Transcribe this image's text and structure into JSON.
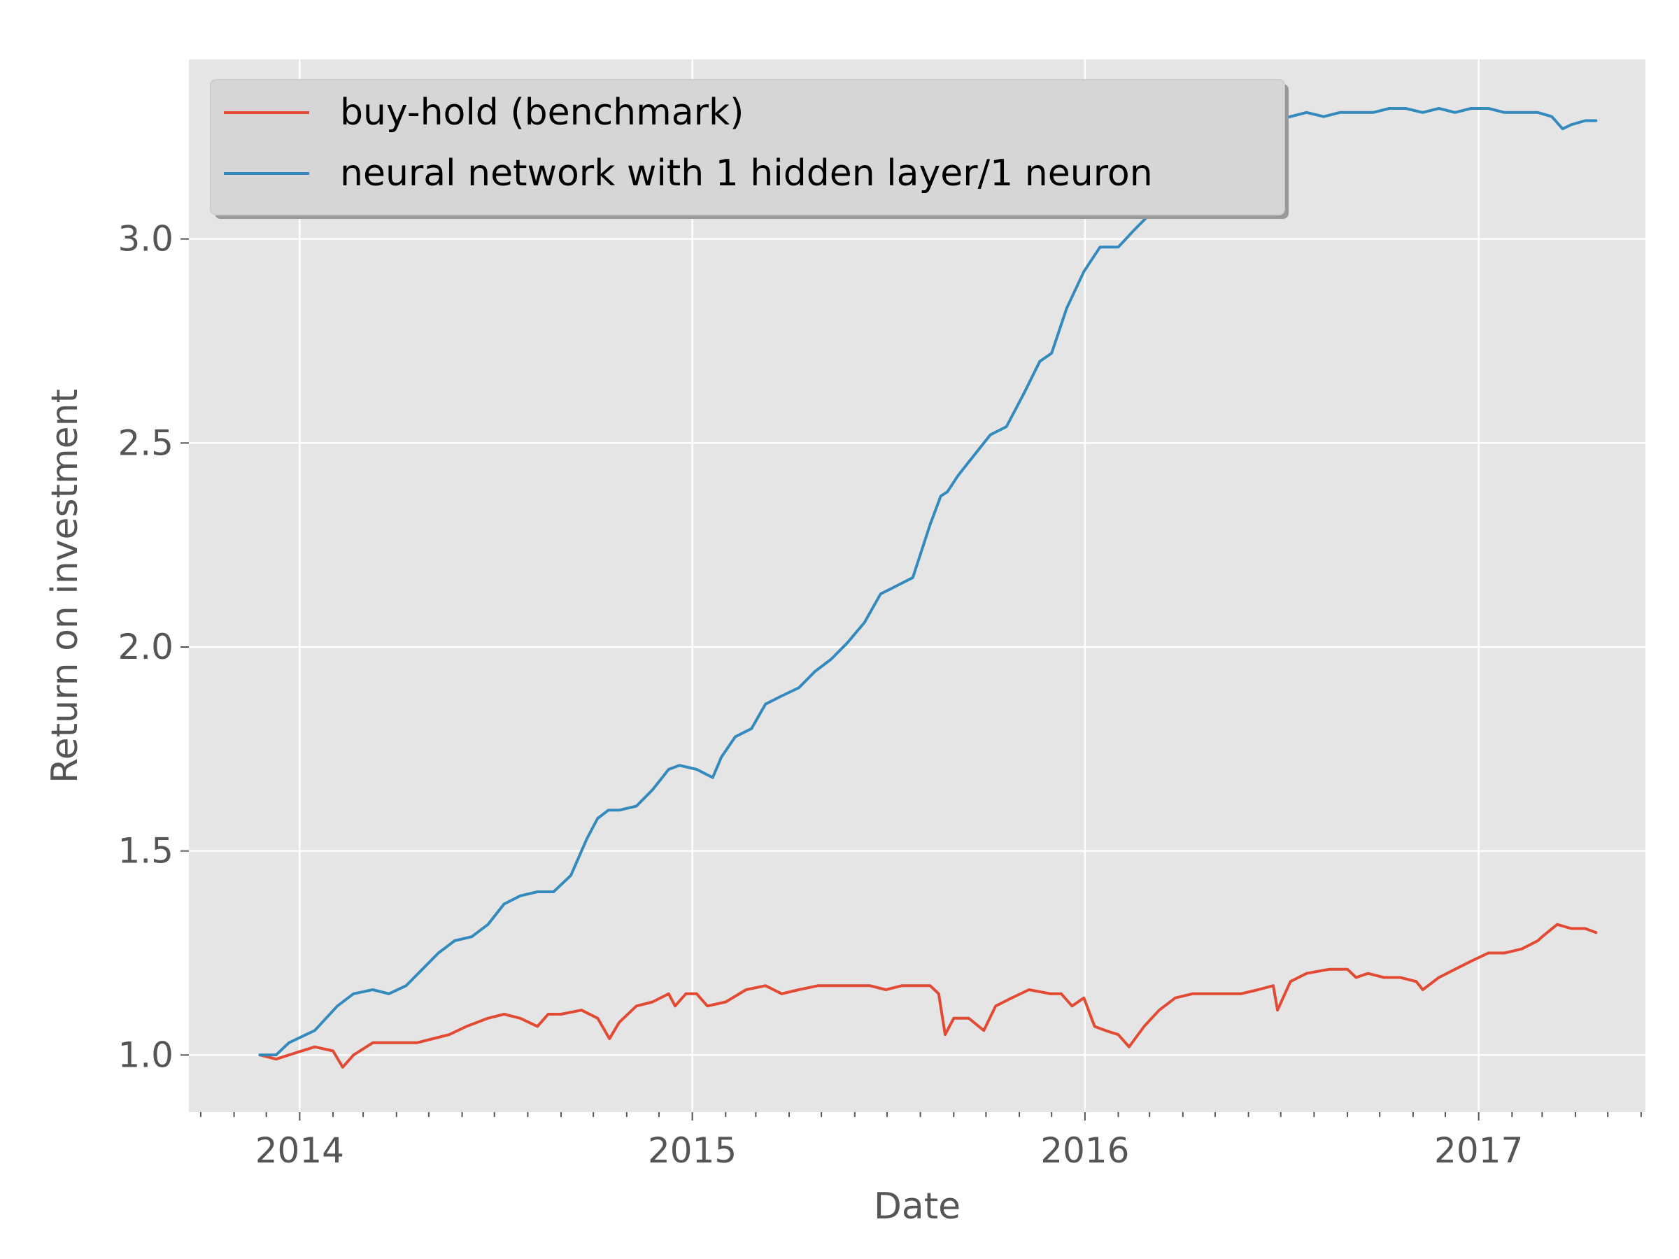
{
  "chart_data": {
    "type": "line",
    "xlabel": "Date",
    "ylabel": "Return on investment",
    "x_axis_type": "date",
    "xlim": [
      "2013-09-20",
      "2017-06-05"
    ],
    "ylim": [
      0.86,
      3.44
    ],
    "x_ticks": [
      {
        "date": "2014-01-01",
        "label": "2014"
      },
      {
        "date": "2015-01-01",
        "label": "2015"
      },
      {
        "date": "2016-01-01",
        "label": "2016"
      },
      {
        "date": "2017-01-01",
        "label": "2017"
      }
    ],
    "minor_x_ticks": "monthly",
    "y_ticks": [
      {
        "value": 1.0,
        "label": "1.0"
      },
      {
        "value": 1.5,
        "label": "1.5"
      },
      {
        "value": 2.0,
        "label": "2.0"
      },
      {
        "value": 2.5,
        "label": "2.5"
      },
      {
        "value": 3.0,
        "label": "3.0"
      }
    ],
    "grid": true,
    "legend_position": "upper-left",
    "series": [
      {
        "name": "buy-hold (benchmark)",
        "color": "#E24A33",
        "x": [
          "2013-11-25",
          "2013-12-10",
          "2013-12-22",
          "2014-01-15",
          "2014-02-01",
          "2014-02-10",
          "2014-02-20",
          "2014-03-10",
          "2014-03-25",
          "2014-04-05",
          "2014-04-20",
          "2014-05-05",
          "2014-05-20",
          "2014-06-05",
          "2014-06-25",
          "2014-07-10",
          "2014-07-25",
          "2014-08-10",
          "2014-08-20",
          "2014-09-01",
          "2014-09-20",
          "2014-10-05",
          "2014-10-16",
          "2014-10-25",
          "2014-11-10",
          "2014-11-25",
          "2014-12-10",
          "2014-12-16",
          "2014-12-26",
          "2015-01-05",
          "2015-01-15",
          "2015-02-01",
          "2015-02-20",
          "2015-03-10",
          "2015-03-25",
          "2015-04-10",
          "2015-04-28",
          "2015-05-15",
          "2015-06-01",
          "2015-06-15",
          "2015-06-30",
          "2015-07-15",
          "2015-07-30",
          "2015-08-10",
          "2015-08-18",
          "2015-08-24",
          "2015-09-01",
          "2015-09-15",
          "2015-09-29",
          "2015-10-10",
          "2015-10-25",
          "2015-11-10",
          "2015-11-30",
          "2015-12-10",
          "2015-12-20",
          "2015-12-31",
          "2016-01-10",
          "2016-01-20",
          "2016-02-01",
          "2016-02-11",
          "2016-02-25",
          "2016-03-10",
          "2016-03-25",
          "2016-04-10",
          "2016-04-25",
          "2016-05-10",
          "2016-05-25",
          "2016-06-10",
          "2016-06-24",
          "2016-06-28",
          "2016-07-10",
          "2016-07-25",
          "2016-08-15",
          "2016-09-01",
          "2016-09-09",
          "2016-09-20",
          "2016-10-05",
          "2016-10-20",
          "2016-11-04",
          "2016-11-10",
          "2016-11-25",
          "2016-12-10",
          "2016-12-25",
          "2017-01-10",
          "2017-01-25",
          "2017-02-10",
          "2017-02-25",
          "2017-03-01",
          "2017-03-15",
          "2017-03-28",
          "2017-04-10",
          "2017-04-20"
        ],
        "y": [
          1.0,
          0.99,
          1.0,
          1.02,
          1.01,
          0.97,
          1.0,
          1.03,
          1.03,
          1.03,
          1.03,
          1.04,
          1.05,
          1.07,
          1.09,
          1.1,
          1.09,
          1.07,
          1.1,
          1.1,
          1.11,
          1.09,
          1.04,
          1.08,
          1.12,
          1.13,
          1.15,
          1.12,
          1.15,
          1.15,
          1.12,
          1.13,
          1.16,
          1.17,
          1.15,
          1.16,
          1.17,
          1.17,
          1.17,
          1.17,
          1.16,
          1.17,
          1.17,
          1.17,
          1.15,
          1.05,
          1.09,
          1.09,
          1.06,
          1.12,
          1.14,
          1.16,
          1.15,
          1.15,
          1.12,
          1.14,
          1.07,
          1.06,
          1.05,
          1.02,
          1.07,
          1.11,
          1.14,
          1.15,
          1.15,
          1.15,
          1.15,
          1.16,
          1.17,
          1.11,
          1.18,
          1.2,
          1.21,
          1.21,
          1.19,
          1.2,
          1.19,
          1.19,
          1.18,
          1.16,
          1.19,
          1.21,
          1.23,
          1.25,
          1.25,
          1.26,
          1.28,
          1.29,
          1.32,
          1.31,
          1.31,
          1.3
        ]
      },
      {
        "name": "neural network with 1 hidden layer/1 neuron",
        "color": "#348ABD",
        "x": [
          "2013-11-25",
          "2013-12-10",
          "2013-12-22",
          "2014-01-15",
          "2014-02-05",
          "2014-02-20",
          "2014-03-10",
          "2014-03-25",
          "2014-04-10",
          "2014-04-25",
          "2014-05-10",
          "2014-05-25",
          "2014-06-10",
          "2014-06-25",
          "2014-07-10",
          "2014-07-25",
          "2014-08-10",
          "2014-08-25",
          "2014-09-10",
          "2014-09-25",
          "2014-10-05",
          "2014-10-15",
          "2014-10-25",
          "2014-11-10",
          "2014-11-25",
          "2014-12-10",
          "2014-12-20",
          "2015-01-05",
          "2015-01-20",
          "2015-01-28",
          "2015-02-10",
          "2015-02-25",
          "2015-03-10",
          "2015-03-25",
          "2015-04-10",
          "2015-04-25",
          "2015-05-10",
          "2015-05-25",
          "2015-06-10",
          "2015-06-25",
          "2015-07-10",
          "2015-07-25",
          "2015-08-10",
          "2015-08-20",
          "2015-08-26",
          "2015-09-05",
          "2015-09-20",
          "2015-10-05",
          "2015-10-20",
          "2015-11-05",
          "2015-11-20",
          "2015-12-01",
          "2015-12-15",
          "2015-12-31",
          "2016-01-15",
          "2016-02-01",
          "2016-02-15",
          "2016-03-01",
          "2016-03-15",
          "2016-03-30",
          "2016-04-10",
          "2016-04-25",
          "2016-05-10",
          "2016-05-25",
          "2016-06-10",
          "2016-06-25",
          "2016-07-10",
          "2016-07-25",
          "2016-08-10",
          "2016-08-25",
          "2016-09-10",
          "2016-09-25",
          "2016-10-10",
          "2016-10-25",
          "2016-11-10",
          "2016-11-25",
          "2016-12-10",
          "2016-12-25",
          "2017-01-10",
          "2017-01-25",
          "2017-02-10",
          "2017-02-25",
          "2017-03-10",
          "2017-03-20",
          "2017-03-28",
          "2017-04-10",
          "2017-04-20"
        ],
        "y": [
          1.0,
          1.0,
          1.03,
          1.06,
          1.12,
          1.15,
          1.16,
          1.15,
          1.17,
          1.21,
          1.25,
          1.28,
          1.29,
          1.32,
          1.37,
          1.39,
          1.4,
          1.4,
          1.44,
          1.53,
          1.58,
          1.6,
          1.6,
          1.61,
          1.65,
          1.7,
          1.71,
          1.7,
          1.68,
          1.73,
          1.78,
          1.8,
          1.86,
          1.88,
          1.9,
          1.94,
          1.97,
          2.01,
          2.06,
          2.13,
          2.15,
          2.17,
          2.3,
          2.37,
          2.38,
          2.42,
          2.47,
          2.52,
          2.54,
          2.62,
          2.7,
          2.72,
          2.83,
          2.92,
          2.98,
          2.98,
          3.02,
          3.06,
          3.1,
          3.14,
          3.21,
          3.24,
          3.25,
          3.26,
          3.27,
          3.29,
          3.3,
          3.31,
          3.3,
          3.31,
          3.31,
          3.31,
          3.32,
          3.32,
          3.31,
          3.32,
          3.31,
          3.32,
          3.32,
          3.31,
          3.31,
          3.31,
          3.3,
          3.27,
          3.28,
          3.29,
          3.29
        ]
      }
    ]
  }
}
